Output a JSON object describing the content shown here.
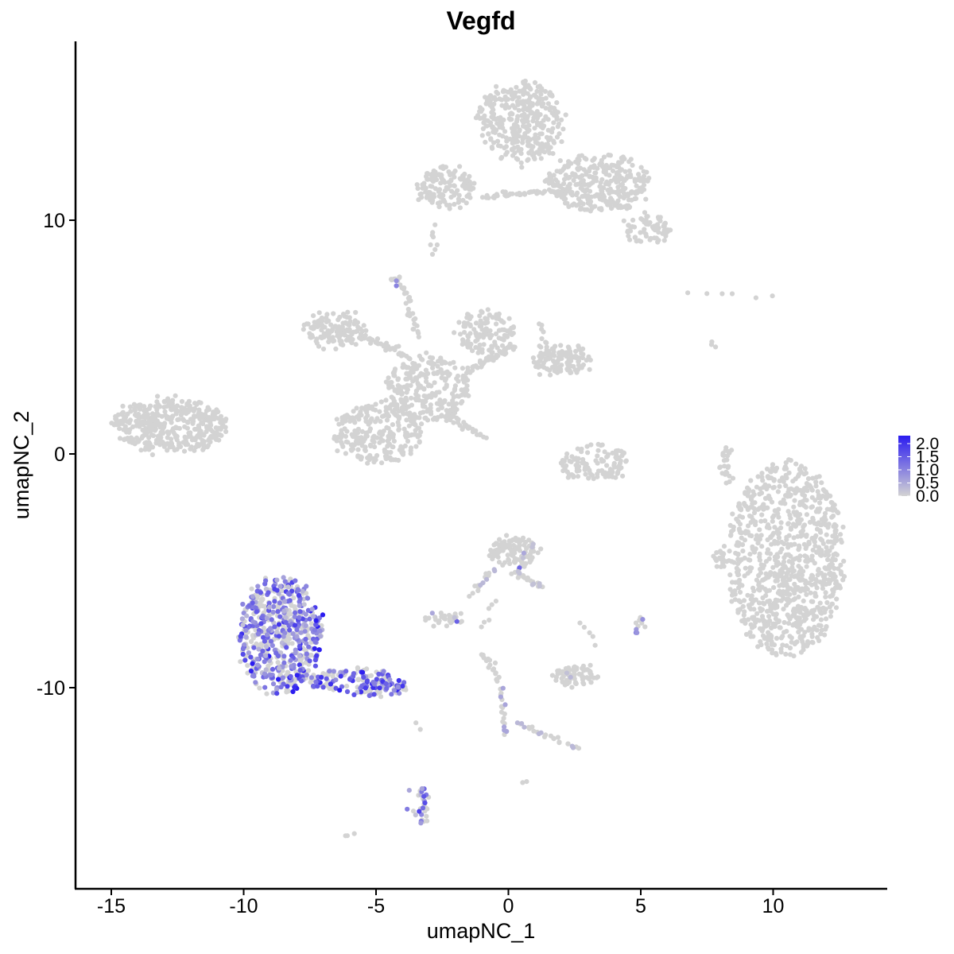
{
  "chart_data": {
    "type": "scatter",
    "title": "Vegfd",
    "xlabel": "umapNC_1",
    "ylabel": "umapNC_2",
    "xlim": [
      -16.5,
      14.5
    ],
    "ylim": [
      -18.5,
      18.5
    ],
    "x_ticks": [
      -15,
      -10,
      -5,
      0,
      5,
      10
    ],
    "x_tick_labels": [
      "-15",
      "-10",
      "-5",
      "0",
      "5",
      "10"
    ],
    "y_ticks": [
      -10,
      0,
      10
    ],
    "y_tick_labels": [
      "-10",
      "0",
      "10"
    ],
    "grid": false,
    "legend": {
      "placement": "right",
      "labels": [
        "2.0",
        "1.5",
        "1.0",
        "0.5",
        "0.0"
      ],
      "values": [
        2.0,
        1.5,
        1.0,
        0.5,
        0.0
      ],
      "low_color": "#d3d3d3",
      "high_color": "#2b1cf0"
    },
    "clusters": [
      {
        "cx": 10.5,
        "cy": -4.5,
        "rx": 2.2,
        "ry": 4.2,
        "n": 900,
        "expr": 0,
        "expr_frac": 0
      },
      {
        "cx": -12.8,
        "cy": 1.2,
        "rx": 2.2,
        "ry": 1.1,
        "n": 400,
        "expr": 0,
        "expr_frac": 0
      },
      {
        "cx": -8.6,
        "cy": -7.8,
        "rx": 1.6,
        "ry": 2.5,
        "n": 600,
        "expr": 1.0,
        "expr_frac": 0.55
      },
      {
        "cx": -6.0,
        "cy": -9.7,
        "rx": 1.6,
        "ry": 0.55,
        "n": 120,
        "expr": 1.2,
        "expr_frac": 0.5
      },
      {
        "cx": -4.6,
        "cy": -10.0,
        "rx": 0.7,
        "ry": 0.35,
        "n": 50,
        "expr": 1.2,
        "expr_frac": 0.5
      },
      {
        "cx": 0.5,
        "cy": 14.2,
        "rx": 1.6,
        "ry": 1.8,
        "n": 350,
        "expr": 0,
        "expr_frac": 0
      },
      {
        "cx": 3.4,
        "cy": 11.6,
        "rx": 2.0,
        "ry": 1.2,
        "n": 300,
        "expr": 0,
        "expr_frac": 0
      },
      {
        "cx": -2.4,
        "cy": 11.4,
        "rx": 1.1,
        "ry": 0.9,
        "n": 130,
        "expr": 0,
        "expr_frac": 0
      },
      {
        "cx": 5.2,
        "cy": 9.6,
        "rx": 0.9,
        "ry": 0.6,
        "n": 70,
        "expr": 0,
        "expr_frac": 0
      },
      {
        "cx": -3.0,
        "cy": 2.8,
        "rx": 1.6,
        "ry": 1.4,
        "n": 250,
        "expr": 0,
        "expr_frac": 0
      },
      {
        "cx": -4.9,
        "cy": 0.9,
        "rx": 1.7,
        "ry": 1.3,
        "n": 250,
        "expr": 0,
        "expr_frac": 0
      },
      {
        "cx": -6.6,
        "cy": 5.3,
        "rx": 1.1,
        "ry": 0.8,
        "n": 130,
        "expr": 0,
        "expr_frac": 0
      },
      {
        "cx": -0.9,
        "cy": 5.2,
        "rx": 1.1,
        "ry": 0.9,
        "n": 120,
        "expr": 0,
        "expr_frac": 0
      },
      {
        "cx": 2.0,
        "cy": 4.0,
        "rx": 1.1,
        "ry": 0.6,
        "n": 130,
        "expr": 0,
        "expr_frac": 0
      },
      {
        "cx": 3.2,
        "cy": -0.4,
        "rx": 1.3,
        "ry": 0.8,
        "n": 110,
        "expr": 0,
        "expr_frac": 0
      },
      {
        "cx": 0.2,
        "cy": -4.2,
        "rx": 0.9,
        "ry": 0.7,
        "n": 110,
        "expr": 0.2,
        "expr_frac": 0.05
      },
      {
        "cx": 2.5,
        "cy": -9.5,
        "rx": 0.8,
        "ry": 0.45,
        "n": 70,
        "expr": 0.3,
        "expr_frac": 0.05
      },
      {
        "cx": -2.4,
        "cy": -7.1,
        "rx": 0.6,
        "ry": 0.3,
        "n": 35,
        "expr": 0.4,
        "expr_frac": 0.05
      },
      {
        "cx": 8.0,
        "cy": -4.4,
        "rx": 0.3,
        "ry": 0.45,
        "n": 20,
        "expr": 0,
        "expr_frac": 0
      },
      {
        "cx": 8.2,
        "cy": -0.4,
        "rx": 0.2,
        "ry": 0.8,
        "n": 25,
        "expr": 0,
        "expr_frac": 0
      },
      {
        "cx": -3.4,
        "cy": -15.0,
        "rx": 0.35,
        "ry": 0.8,
        "n": 30,
        "expr": 0.8,
        "expr_frac": 0.3
      },
      {
        "cx": 5.0,
        "cy": -7.3,
        "rx": 0.15,
        "ry": 0.3,
        "n": 10,
        "expr": 0.8,
        "expr_frac": 0.4
      },
      {
        "cx": -4.3,
        "cy": 7.4,
        "rx": 0.2,
        "ry": 0.2,
        "n": 10,
        "expr": 0.6,
        "expr_frac": 0.3
      }
    ],
    "trails": [
      {
        "x1": -0.9,
        "y1": 11.0,
        "x2": 1.1,
        "y2": 11.2,
        "n": 30,
        "expr": 0
      },
      {
        "x1": 1.1,
        "y1": 11.2,
        "x2": 2.6,
        "y2": 11.1,
        "n": 20,
        "expr": 0
      },
      {
        "x1": 3.4,
        "y1": 11.0,
        "x2": 4.6,
        "y2": 10.5,
        "n": 25,
        "expr": 0
      },
      {
        "x1": -2.8,
        "y1": 9.8,
        "x2": -2.8,
        "y2": 8.5,
        "n": 8,
        "expr": 0
      },
      {
        "x1": -1.6,
        "y1": 3.5,
        "x2": 0.2,
        "y2": 4.6,
        "n": 40,
        "expr": 0
      },
      {
        "x1": -3.8,
        "y1": 4.2,
        "x2": -5.6,
        "y2": 5.1,
        "n": 40,
        "expr": 0
      },
      {
        "x1": -2.4,
        "y1": 1.8,
        "x2": -1.0,
        "y2": 0.7,
        "n": 30,
        "expr": 0
      },
      {
        "x1": -3.4,
        "y1": 5.0,
        "x2": -4.0,
        "y2": 7.3,
        "n": 25,
        "expr": 0
      },
      {
        "x1": -3.9,
        "y1": 3.2,
        "x2": -3.5,
        "y2": 3.7,
        "n": 10,
        "expr": 0
      },
      {
        "x1": 1.2,
        "y1": 5.6,
        "x2": 1.5,
        "y2": 4.3,
        "n": 10,
        "expr": 0
      },
      {
        "x1": 0.2,
        "y1": -5.0,
        "x2": 1.3,
        "y2": -5.7,
        "n": 20,
        "expr": 0.2
      },
      {
        "x1": -0.5,
        "y1": -4.9,
        "x2": -1.4,
        "y2": -6.0,
        "n": 15,
        "expr": 0.3
      },
      {
        "x1": -0.5,
        "y1": -6.3,
        "x2": -1.0,
        "y2": -7.5,
        "n": 6,
        "expr": 0
      },
      {
        "x1": -1.0,
        "y1": -8.5,
        "x2": -0.3,
        "y2": -9.7,
        "n": 18,
        "expr": 0
      },
      {
        "x1": -0.3,
        "y1": -10.0,
        "x2": -0.1,
        "y2": -12.0,
        "n": 18,
        "expr": 0.5
      },
      {
        "x1": 0.3,
        "y1": -11.5,
        "x2": 2.6,
        "y2": -12.6,
        "n": 25,
        "expr": 0.3
      },
      {
        "x1": 2.8,
        "y1": -7.2,
        "x2": 3.3,
        "y2": -8.1,
        "n": 5,
        "expr": 0
      },
      {
        "x1": -3.6,
        "y1": -11.6,
        "x2": -3.5,
        "y2": -11.8,
        "n": 2,
        "expr": 0
      },
      {
        "x1": -6.1,
        "y1": -16.3,
        "x2": -5.9,
        "y2": -16.3,
        "n": 3,
        "expr": 0
      },
      {
        "x1": 6.9,
        "y1": 6.9,
        "x2": 9.8,
        "y2": 6.8,
        "n": 6,
        "expr": 0
      },
      {
        "x1": 7.6,
        "y1": 4.8,
        "x2": 7.8,
        "y2": 4.5,
        "n": 3,
        "expr": 0
      },
      {
        "x1": 0.6,
        "y1": -14.1,
        "x2": 0.7,
        "y2": -14.2,
        "n": 2,
        "expr": 1.5
      }
    ]
  }
}
